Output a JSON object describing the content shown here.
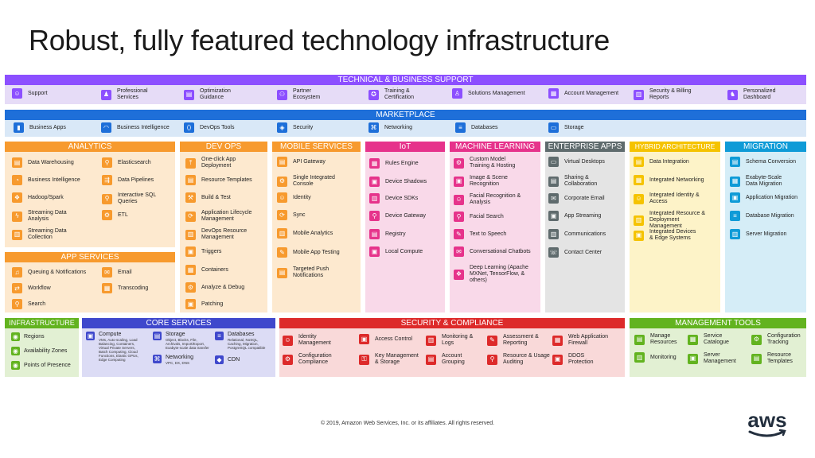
{
  "title": "Robust, fully featured technology infrastructure",
  "footer": "© 2019, Amazon Web Services, Inc. or its affiliates. All rights reserved.",
  "logo": "aws",
  "colors": {
    "purple": "#8c4fff",
    "purple_bg": "#e6dcf7",
    "blue": "#1e6fd9",
    "blue_bg": "#d9e8f7",
    "orange": "#f79a2e",
    "orange_bg": "#fde9cf",
    "pink": "#e6338b",
    "pink_bg": "#f9d9e9",
    "gray": "#5f6b6d",
    "gray_bg": "#e4e4e4",
    "yellow": "#f5c300",
    "yellow_bg": "#fdf3c8",
    "teal": "#0f9bd7",
    "teal_bg": "#d5edf7",
    "green": "#62b31f",
    "green_bg": "#e2f0d3",
    "indigo": "#3f48cc",
    "indigo_bg": "#dcdcf5",
    "red": "#dd2a2a",
    "red_bg": "#f9d9d9"
  },
  "tech_support": {
    "header": "TECHNICAL & BUSINESS SUPPORT",
    "items": [
      "Support",
      "Professional Services",
      "Optimization Guidance",
      "Partner Ecosystem",
      "Training & Certification",
      "Solutions Management",
      "Account Management",
      "Security & Billing Reports",
      "Personalized Dashboard"
    ]
  },
  "marketplace": {
    "header": "MARKETPLACE",
    "items": [
      "Business Apps",
      "Business Intelligence",
      "DevOps Tools",
      "Security",
      "Networking",
      "Databases",
      "Storage"
    ]
  },
  "analytics": {
    "header": "ANALYTICS",
    "col1": [
      "Data Warehousing",
      "Business Intelligence",
      "Hadoop/Spark",
      "Streaming Data Analysis",
      "Streaming Data Collection"
    ],
    "col2": [
      "Elasticsearch",
      "Data Pipelines",
      "Interactive SQL Queries",
      "ETL"
    ]
  },
  "app_services": {
    "header": "APP SERVICES",
    "col1": [
      "Queuing & Notifications",
      "Workflow",
      "Search"
    ],
    "col2": [
      "Email",
      "Transcoding"
    ]
  },
  "devops": {
    "header": "DEV OPS",
    "items": [
      "One-click App Deployment",
      "Resource Templates",
      "Build & Test",
      "Application Lifecycle Management",
      "DevOps Resource Management",
      "Triggers",
      "Containers",
      "Analyze & Debug",
      "Patching"
    ]
  },
  "mobile": {
    "header": "MOBILE SERVICES",
    "items": [
      "API Gateway",
      "Single Integrated Console",
      "Identity",
      "Sync",
      "Mobile Analytics",
      "Mobile App Testing",
      "Targeted Push Notifications"
    ]
  },
  "iot": {
    "header": "IoT",
    "items": [
      "Rules Engine",
      "Device Shadows",
      "Device SDKs",
      "Device Gateway",
      "Registry",
      "Local Compute"
    ]
  },
  "ml": {
    "header": "MACHINE LEARNING",
    "items": [
      "Custom Model Training & Hosting",
      "Image & Scene Recognition",
      "Facial Recognition & Analysis",
      "Facial Search",
      "Text to Speech",
      "Conversational Chatbots",
      "Deep Learning (Apache MXNet, TensorFlow, & others)"
    ]
  },
  "enterprise": {
    "header": "ENTERPRISE APPS",
    "items": [
      "Virtual Desktops",
      "Sharing & Collaboration",
      "Corporate Email",
      "App Streaming",
      "Communications",
      "Contact Center"
    ]
  },
  "hybrid": {
    "header": "HYBRID ARCHITECTURE",
    "items": [
      "Data Integration",
      "Integrated Networking",
      "Integrated Identity & Access",
      "Integrated Resource & Deployment Management",
      "Integrated Devices & Edge Systems"
    ]
  },
  "migration": {
    "header": "MIGRATION",
    "items": [
      "Schema Conversion",
      "Exabyte-Scale Data Migration",
      "Application Migration",
      "Database Migration",
      "Server Migration"
    ]
  },
  "infrastructure": {
    "header": "INFRASTRUCTURE",
    "items": [
      "Regions",
      "Availability Zones",
      "Points of Presence"
    ]
  },
  "core": {
    "header": "CORE SERVICES",
    "compute": {
      "label": "Compute",
      "desc": "VMs, Auto-scaling, Load Balancing, Containers, Virtual Private Servers, Batch Computing, Cloud Functions, Elastic GPUs, Edge Computing"
    },
    "storage": {
      "label": "Storage",
      "desc": "Object, Blocks, File, Archivals, Import/Export, Exabyte-scale data transfer"
    },
    "databases": {
      "label": "Databases",
      "desc": "Relational, NoSQL, Caching, Migration, PostgreSQL compatible"
    },
    "networking": {
      "label": "Networking",
      "desc": "VPC, DX, DNS"
    },
    "cdn": {
      "label": "CDN"
    }
  },
  "security": {
    "header": "SECURITY & COMPLIANCE",
    "items": [
      "Identity Management",
      "Configuration Compliance",
      "Access Control",
      "Key Management & Storage",
      "Monitoring & Logs",
      "Account Grouping",
      "Assessment & Reporting",
      "Resource & Usage Auditing",
      "Web Application Firewall",
      "DDOS Protection"
    ]
  },
  "management": {
    "header": "MANAGEMENT TOOLS",
    "items": [
      "Manage Resources",
      "Monitoring",
      "Service Catalogue",
      "Server Management",
      "Configuration Tracking",
      "Resource Templates"
    ]
  }
}
